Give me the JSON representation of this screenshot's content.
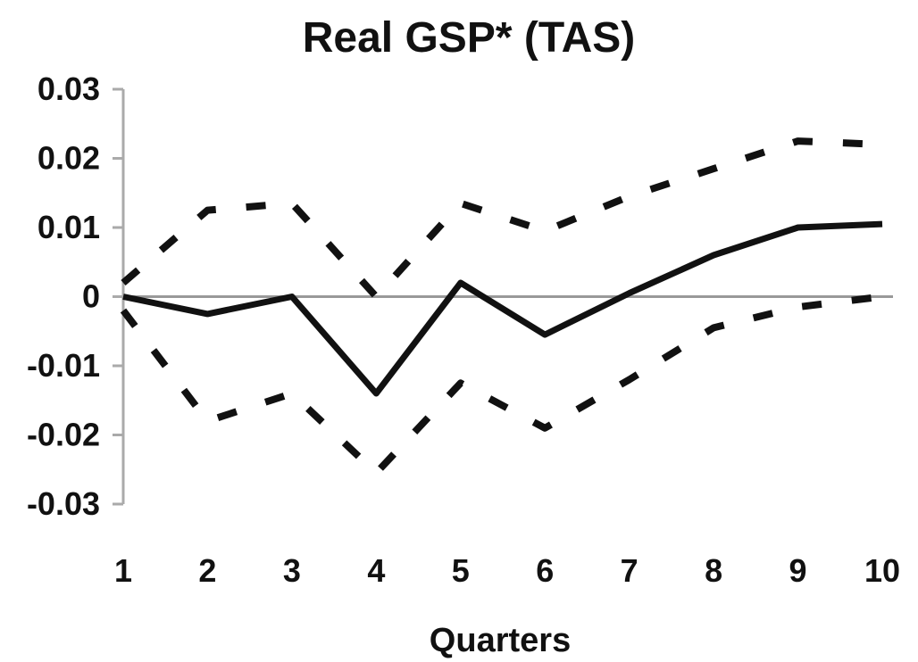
{
  "chart_data": {
    "type": "line",
    "title": "Real GSP* (TAS)",
    "xlabel": "Quarters",
    "ylabel": "",
    "x": [
      1,
      2,
      3,
      4,
      5,
      6,
      7,
      8,
      9,
      10
    ],
    "x_tick_labels": [
      "1",
      "2",
      "3",
      "4",
      "5",
      "6",
      "7",
      "8",
      "9",
      "10"
    ],
    "y_ticks": [
      0.03,
      0.02,
      0.01,
      0,
      -0.01,
      -0.02,
      -0.03
    ],
    "y_tick_labels": [
      "0.03",
      "0.02",
      "0.01",
      "0",
      "-0.01",
      "-0.02",
      "-0.03"
    ],
    "ylim": [
      -0.03,
      0.03
    ],
    "grid": false,
    "legend": "none",
    "series": [
      {
        "role": "estimate",
        "style": "solid",
        "values": [
          0.0,
          -0.0025,
          0.0,
          -0.014,
          0.002,
          -0.0055,
          0.0005,
          0.006,
          0.01,
          0.0105
        ]
      },
      {
        "role": "upper-band",
        "style": "dashed",
        "values": [
          0.002,
          0.0125,
          0.0135,
          0.0,
          0.0135,
          0.0095,
          0.0145,
          0.0185,
          0.0225,
          0.022
        ]
      },
      {
        "role": "lower-band",
        "style": "dashed",
        "values": [
          -0.002,
          -0.018,
          -0.014,
          -0.0255,
          -0.0125,
          -0.019,
          -0.012,
          -0.0045,
          -0.0015,
          0.0
        ]
      }
    ],
    "colors": {
      "line": "#111111",
      "zero_line": "#999999",
      "axis": "#aaaaaa",
      "text": "#111111"
    }
  }
}
